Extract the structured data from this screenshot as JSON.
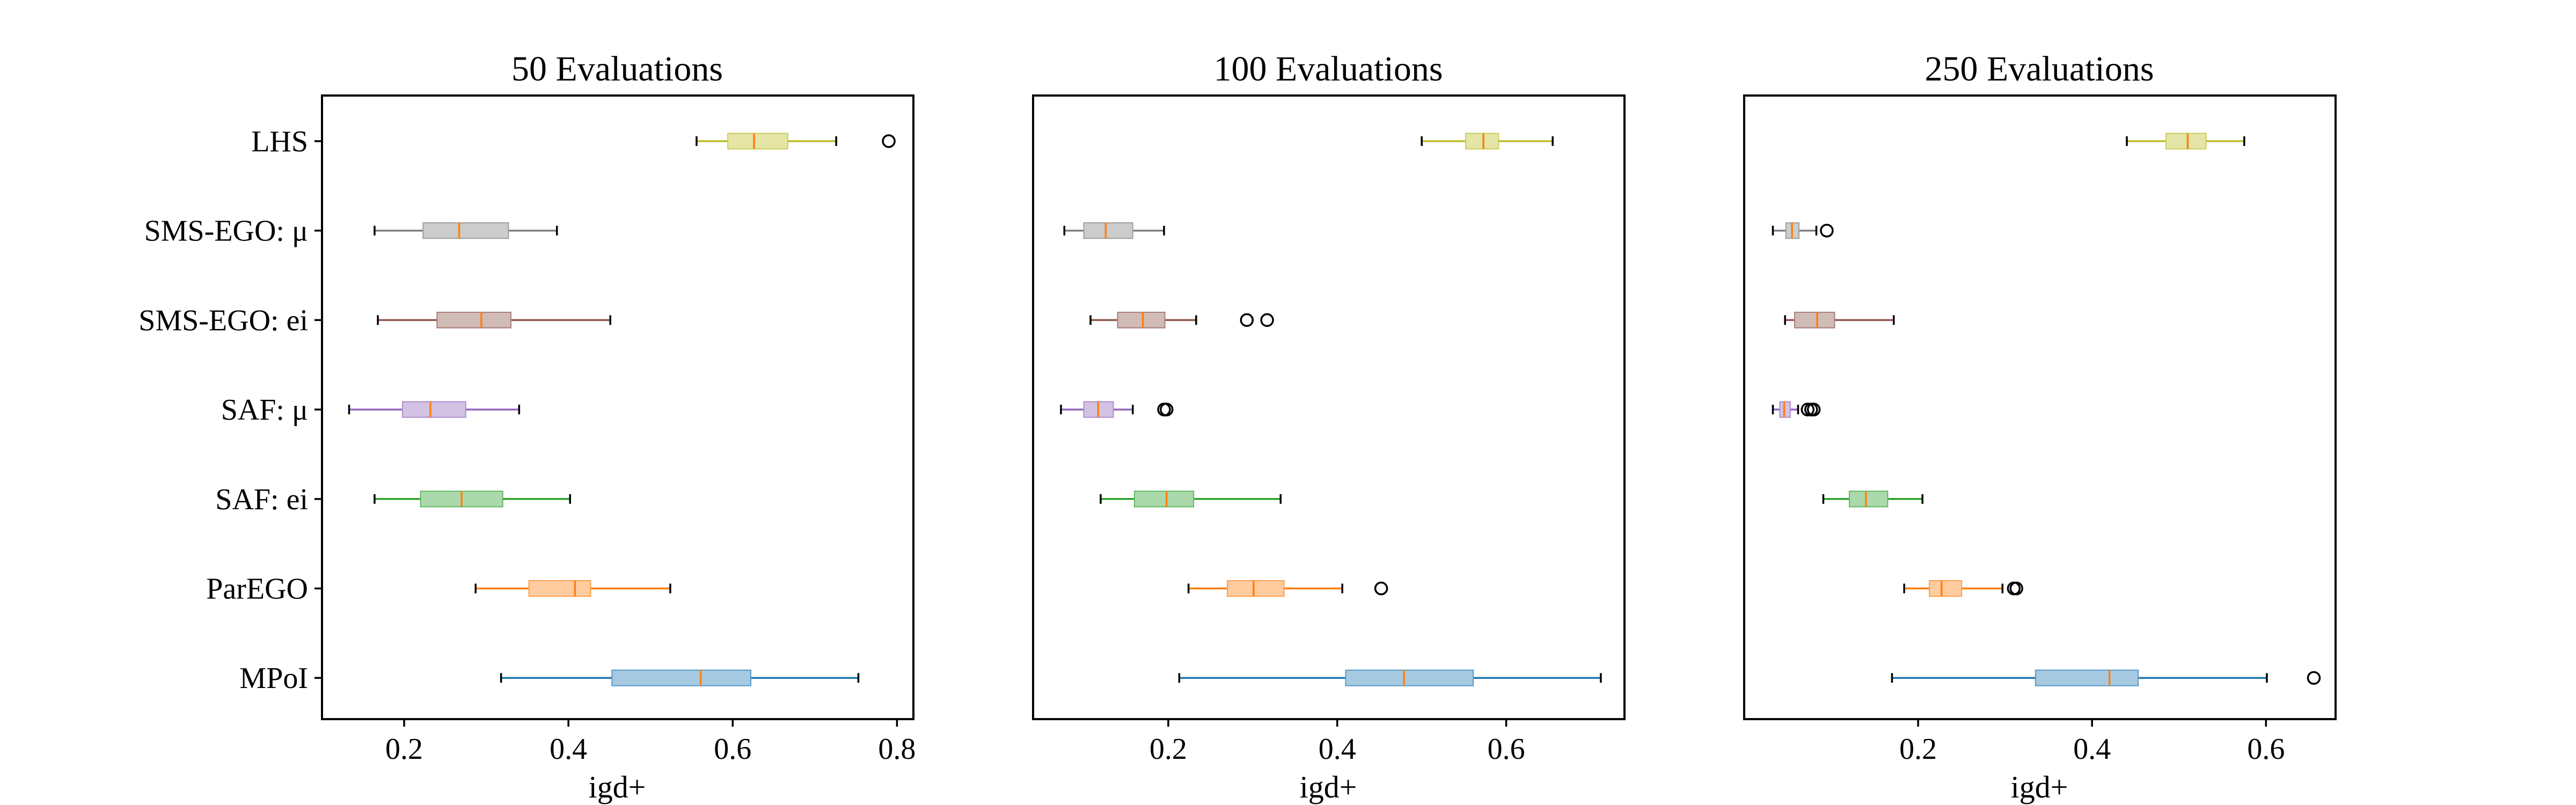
{
  "chart_data": {
    "type": "boxplot",
    "orientation": "horizontal",
    "categories": [
      "LHS",
      "SMS-EGO: μ",
      "SMS-EGO: ei",
      "SAF: μ",
      "SAF: ei",
      "ParEGO",
      "MPoI"
    ],
    "colors": {
      "LHS": "#bcbd22",
      "SMS-EGO: μ": "#7f7f7f",
      "SMS-EGO: ei": "#8c564b",
      "SAF: μ": "#9467bd",
      "SAF: ei": "#2ca02c",
      "ParEGO": "#ff7f0e",
      "MPoI": "#1f77b4"
    },
    "median_color": "#ff7f0e",
    "panels": [
      {
        "title": "50 Evaluations",
        "xlabel": "igd+",
        "xlim": [
          0.1,
          0.82
        ],
        "xticks": [
          0.2,
          0.4,
          0.6,
          0.8
        ],
        "xtick_labels": [
          "0.2",
          "0.4",
          "0.6",
          "0.8"
        ],
        "show_category_labels": true,
        "boxes": {
          "LHS": {
            "whislo": 0.556,
            "q1": 0.594,
            "med": 0.626,
            "q3": 0.667,
            "whishi": 0.726,
            "fliers": [
              0.79
            ]
          },
          "SMS-EGO: μ": {
            "whislo": 0.164,
            "q1": 0.223,
            "med": 0.267,
            "q3": 0.327,
            "whishi": 0.386,
            "fliers": []
          },
          "SMS-EGO: ei": {
            "whislo": 0.168,
            "q1": 0.24,
            "med": 0.294,
            "q3": 0.33,
            "whishi": 0.451,
            "fliers": []
          },
          "SAF: μ": {
            "whislo": 0.133,
            "q1": 0.198,
            "med": 0.232,
            "q3": 0.275,
            "whishi": 0.34,
            "fliers": []
          },
          "SAF: ei": {
            "whislo": 0.164,
            "q1": 0.22,
            "med": 0.27,
            "q3": 0.32,
            "whishi": 0.402,
            "fliers": []
          },
          "ParEGO": {
            "whislo": 0.287,
            "q1": 0.352,
            "med": 0.408,
            "q3": 0.427,
            "whishi": 0.524,
            "fliers": []
          },
          "MPoI": {
            "whislo": 0.318,
            "q1": 0.453,
            "med": 0.561,
            "q3": 0.622,
            "whishi": 0.753,
            "fliers": []
          }
        }
      },
      {
        "title": "100 Evaluations",
        "xlabel": "igd+",
        "xlim": [
          0.04,
          0.74
        ],
        "xticks": [
          0.2,
          0.4,
          0.6
        ],
        "xtick_labels": [
          "0.2",
          "0.4",
          "0.6"
        ],
        "show_category_labels": false,
        "boxes": {
          "LHS": {
            "whislo": 0.5,
            "q1": 0.552,
            "med": 0.573,
            "q3": 0.591,
            "whishi": 0.655,
            "fliers": []
          },
          "SMS-EGO: μ": {
            "whislo": 0.077,
            "q1": 0.1,
            "med": 0.126,
            "q3": 0.158,
            "whishi": 0.195,
            "fliers": []
          },
          "SMS-EGO: ei": {
            "whislo": 0.108,
            "q1": 0.14,
            "med": 0.17,
            "q3": 0.196,
            "whishi": 0.233,
            "fliers": [
              0.293,
              0.317
            ]
          },
          "SAF: μ": {
            "whislo": 0.073,
            "q1": 0.1,
            "med": 0.117,
            "q3": 0.135,
            "whishi": 0.158,
            "fliers": [
              0.195,
              0.198
            ]
          },
          "SAF: ei": {
            "whislo": 0.12,
            "q1": 0.16,
            "med": 0.198,
            "q3": 0.23,
            "whishi": 0.333,
            "fliers": []
          },
          "ParEGO": {
            "whislo": 0.224,
            "q1": 0.27,
            "med": 0.301,
            "q3": 0.337,
            "whishi": 0.406,
            "fliers": [
              0.452
            ]
          },
          "MPoI": {
            "whislo": 0.213,
            "q1": 0.41,
            "med": 0.479,
            "q3": 0.561,
            "whishi": 0.712,
            "fliers": []
          }
        }
      },
      {
        "title": "250 Evaluations",
        "xlabel": "igd+",
        "xlim": [
          0.0,
          0.68
        ],
        "xticks": [
          0.2,
          0.4,
          0.6
        ],
        "xtick_labels": [
          "0.2",
          "0.4",
          "0.6"
        ],
        "show_category_labels": false,
        "boxes": {
          "LHS": {
            "whislo": 0.44,
            "q1": 0.485,
            "med": 0.51,
            "q3": 0.531,
            "whishi": 0.575,
            "fliers": []
          },
          "SMS-EGO: μ": {
            "whislo": 0.033,
            "q1": 0.048,
            "med": 0.055,
            "q3": 0.063,
            "whishi": 0.083,
            "fliers": [
              0.095
            ]
          },
          "SMS-EGO: ei": {
            "whislo": 0.047,
            "q1": 0.058,
            "med": 0.084,
            "q3": 0.104,
            "whishi": 0.172,
            "fliers": []
          },
          "SAF: μ": {
            "whislo": 0.033,
            "q1": 0.041,
            "med": 0.046,
            "q3": 0.053,
            "whishi": 0.062,
            "fliers": [
              0.073,
              0.077,
              0.08
            ]
          },
          "SAF: ei": {
            "whislo": 0.091,
            "q1": 0.121,
            "med": 0.14,
            "q3": 0.165,
            "whishi": 0.205,
            "fliers": []
          },
          "ParEGO": {
            "whislo": 0.184,
            "q1": 0.213,
            "med": 0.227,
            "q3": 0.25,
            "whishi": 0.297,
            "fliers": [
              0.31,
              0.313
            ]
          },
          "MPoI": {
            "whislo": 0.17,
            "q1": 0.335,
            "med": 0.42,
            "q3": 0.453,
            "whishi": 0.601,
            "fliers": [
              0.655
            ]
          }
        }
      }
    ]
  }
}
